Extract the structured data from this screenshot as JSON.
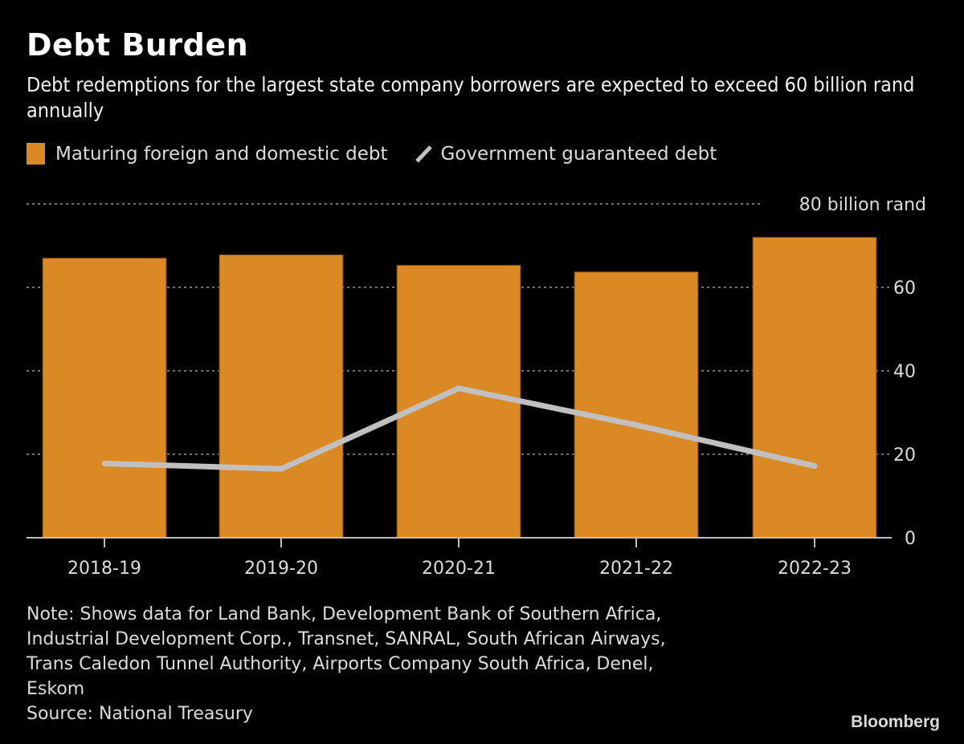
{
  "header": {
    "title": "Debt Burden",
    "subtitle": "Debt redemptions for the largest state company borrowers are expected to exceed 60 billion rand annually"
  },
  "legend": [
    {
      "label": "Maturing foreign and domestic debt",
      "type": "bar",
      "color": "#db8925"
    },
    {
      "label": "Government guaranteed debt",
      "type": "line",
      "color": "#c0c0c0"
    }
  ],
  "footer": {
    "note_lines": [
      "Note: Shows data for Land Bank, Development Bank of Southern Africa,",
      "Industrial Development Corp., Transnet, SANRAL, South African Airways,",
      "Trans Caledon Tunnel Authority, Airports Company South Africa, Denel,",
      "Eskom",
      "Source: National Treasury"
    ],
    "brand": "Bloomberg"
  },
  "chart_data": {
    "type": "bar",
    "title": "Debt Burden",
    "xlabel": "",
    "ylabel": "",
    "categories": [
      "2018-19",
      "2019-20",
      "2020-21",
      "2021-22",
      "2022-23"
    ],
    "series": [
      {
        "name": "Maturing foreign and domestic debt",
        "kind": "bar",
        "color": "#db8925",
        "values": [
          67.0,
          67.8,
          65.3,
          63.7,
          72.0
        ]
      },
      {
        "name": "Government guaranteed debt",
        "kind": "line",
        "color": "#c0c0c0",
        "values": [
          17.8,
          16.5,
          35.8,
          27.0,
          17.2
        ]
      }
    ],
    "ylim": [
      0,
      80
    ],
    "yticks": [
      {
        "value": 0,
        "label": "0"
      },
      {
        "value": 20,
        "label": "20"
      },
      {
        "value": 40,
        "label": "40"
      },
      {
        "value": 60,
        "label": "60"
      },
      {
        "value": 80,
        "label": "80 billion rand"
      }
    ],
    "grid": true,
    "axis_position": "right",
    "legend_position": "top-left"
  }
}
